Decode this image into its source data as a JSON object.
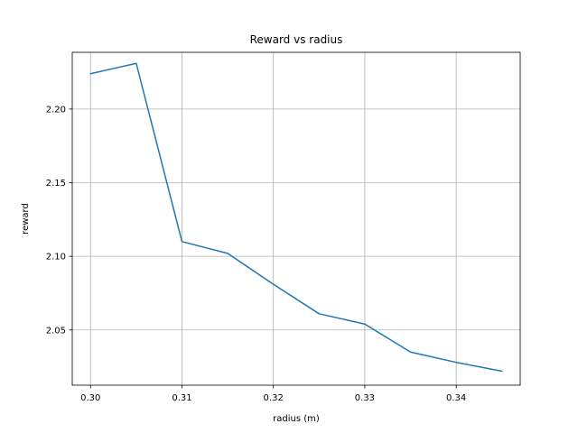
{
  "chart_data": {
    "type": "line",
    "title": "Reward vs radius",
    "xlabel": "radius (m)",
    "ylabel": "reward",
    "xlim": [
      0.298,
      0.347
    ],
    "ylim": [
      2.0125,
      2.2385
    ],
    "grid": true,
    "xticks": [
      0.3,
      0.31,
      0.32,
      0.33,
      0.34
    ],
    "xtick_labels": [
      "0.30",
      "0.31",
      "0.32",
      "0.33",
      "0.34"
    ],
    "yticks": [
      2.05,
      2.1,
      2.15,
      2.2
    ],
    "ytick_labels": [
      "2.05",
      "2.10",
      "2.15",
      "2.20"
    ],
    "series": [
      {
        "color": "#1f77b4",
        "x": [
          0.3,
          0.305,
          0.31,
          0.315,
          0.32,
          0.325,
          0.33,
          0.335,
          0.34,
          0.345
        ],
        "y": [
          2.224,
          2.231,
          2.11,
          2.102,
          2.081,
          2.061,
          2.054,
          2.035,
          2.028,
          2.022
        ]
      }
    ]
  }
}
